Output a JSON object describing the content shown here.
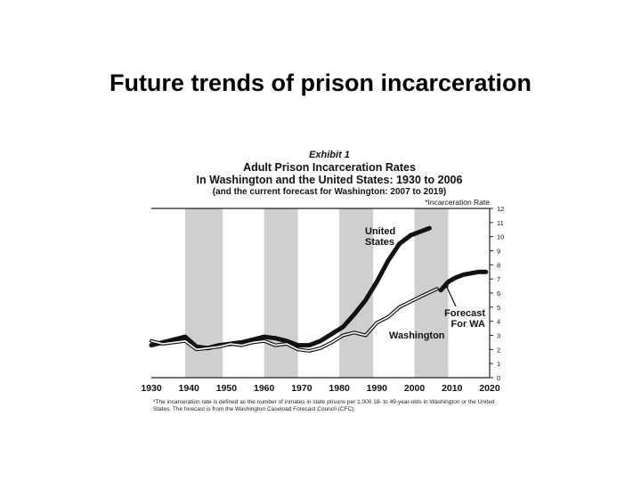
{
  "slide": {
    "title": "Future trends of prison incarceration"
  },
  "chart_data": {
    "type": "line",
    "exhibit": "Exhibit 1",
    "title": "Adult Prison Incarceration Rates",
    "title_line2": "In Washington and the United States: 1930 to 2006",
    "subtitle": "(and the current forecast for Washington: 2007 to 2019)",
    "ylabel": "*Incarceration Rate",
    "ylim": [
      0,
      12
    ],
    "yticks": [
      0,
      1,
      2,
      3,
      4,
      5,
      6,
      7,
      8,
      9,
      10,
      11,
      12
    ],
    "xlim": [
      1930,
      2020
    ],
    "xticks": [
      "1930",
      "1940",
      "1950",
      "1960",
      "1970",
      "1980",
      "1990",
      "2000",
      "2010",
      "2020"
    ],
    "y_axis_position": "right",
    "grid": false,
    "shaded_decades": [
      [
        1939,
        1949
      ],
      [
        1960,
        1969
      ],
      [
        1980,
        1989
      ],
      [
        2000,
        2009
      ]
    ],
    "series": [
      {
        "name": "United States",
        "style": "thick-black",
        "x": [
          1930,
          1933,
          1936,
          1939,
          1942,
          1945,
          1948,
          1951,
          1954,
          1957,
          1960,
          1963,
          1966,
          1969,
          1972,
          1975,
          1978,
          1981,
          1984,
          1987,
          1990,
          1993,
          1996,
          1999,
          2002,
          2004
        ],
        "y": [
          2.3,
          2.5,
          2.7,
          2.9,
          2.2,
          2.1,
          2.3,
          2.4,
          2.5,
          2.7,
          2.9,
          2.8,
          2.6,
          2.3,
          2.3,
          2.6,
          3.1,
          3.6,
          4.5,
          5.5,
          6.8,
          8.3,
          9.5,
          10.1,
          10.4,
          10.6
        ]
      },
      {
        "name": "Washington",
        "style": "double-line",
        "x": [
          1930,
          1933,
          1936,
          1939,
          1942,
          1945,
          1948,
          1951,
          1954,
          1957,
          1960,
          1963,
          1966,
          1969,
          1972,
          1975,
          1978,
          1981,
          1984,
          1987,
          1990,
          1993,
          1996,
          1999,
          2002,
          2006
        ],
        "y": [
          2.6,
          2.4,
          2.5,
          2.6,
          2.0,
          2.1,
          2.2,
          2.4,
          2.3,
          2.5,
          2.6,
          2.3,
          2.4,
          2.0,
          1.9,
          2.1,
          2.5,
          3.0,
          3.2,
          3.0,
          3.9,
          4.3,
          5.0,
          5.4,
          5.8,
          6.3
        ]
      },
      {
        "name": "Forecast For WA",
        "style": "thick-black",
        "x": [
          2007,
          2009,
          2011,
          2013,
          2015,
          2017,
          2019
        ],
        "y": [
          6.2,
          6.8,
          7.1,
          7.3,
          7.4,
          7.5,
          7.5
        ]
      }
    ],
    "annotations": [
      {
        "text": "United States",
        "lines": [
          "United",
          "States"
        ]
      },
      {
        "text": "Forecast For WA",
        "lines": [
          "Forecast",
          "For WA"
        ]
      },
      {
        "text": "Washington",
        "lines": [
          "Washington"
        ]
      }
    ],
    "footnote": "*The incarceration rate is defined as the number of inmates in state prisons per 1,000 18- to 49-year-olds in Washington or the United States. The forecast is from the Washington Caseload Forecast Council (CFC)."
  }
}
